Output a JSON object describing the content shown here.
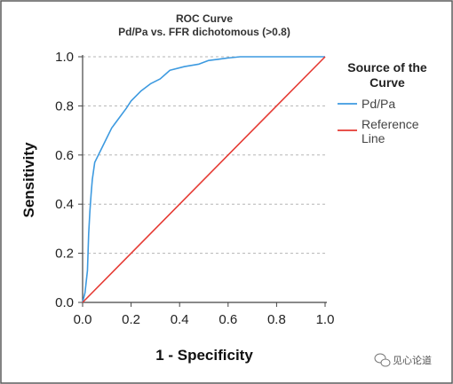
{
  "chart_data": {
    "type": "line",
    "title": "ROC Curve",
    "subtitle": "Pd/Pa vs. FFR dichotomous (>0.8)",
    "xlabel": "1 - Specificity",
    "ylabel": "Sensitivity",
    "xlim": [
      0,
      1
    ],
    "ylim": [
      0,
      1
    ],
    "x_ticks": [
      "0.0",
      "0.2",
      "0.4",
      "0.6",
      "0.8",
      "1.0"
    ],
    "y_ticks": [
      "0.0",
      "0.2",
      "0.4",
      "0.6",
      "0.8",
      "1.0"
    ],
    "grid": "horizontal dashed",
    "legend": {
      "title": "Source of the Curve",
      "placement": "right",
      "entries": [
        "Pd/Pa",
        "Reference Line"
      ]
    },
    "series": [
      {
        "name": "Pd/Pa",
        "color": "#3d9ae0",
        "x": [
          0.0,
          0.01,
          0.02,
          0.025,
          0.03,
          0.035,
          0.04,
          0.05,
          0.06,
          0.08,
          0.1,
          0.12,
          0.15,
          0.18,
          0.2,
          0.24,
          0.28,
          0.32,
          0.36,
          0.42,
          0.48,
          0.52,
          0.56,
          0.6,
          0.65,
          0.7,
          0.8,
          0.9,
          1.0
        ],
        "y": [
          0.0,
          0.04,
          0.13,
          0.28,
          0.37,
          0.44,
          0.5,
          0.57,
          0.59,
          0.63,
          0.67,
          0.71,
          0.75,
          0.79,
          0.82,
          0.86,
          0.89,
          0.91,
          0.945,
          0.96,
          0.97,
          0.985,
          0.99,
          0.995,
          1.0,
          1.0,
          1.0,
          1.0,
          1.0
        ]
      },
      {
        "name": "Reference Line",
        "color": "#e53a33",
        "x": [
          0.0,
          1.0
        ],
        "y": [
          0.0,
          1.0
        ]
      }
    ]
  },
  "watermark": {
    "text": "见心论道"
  }
}
